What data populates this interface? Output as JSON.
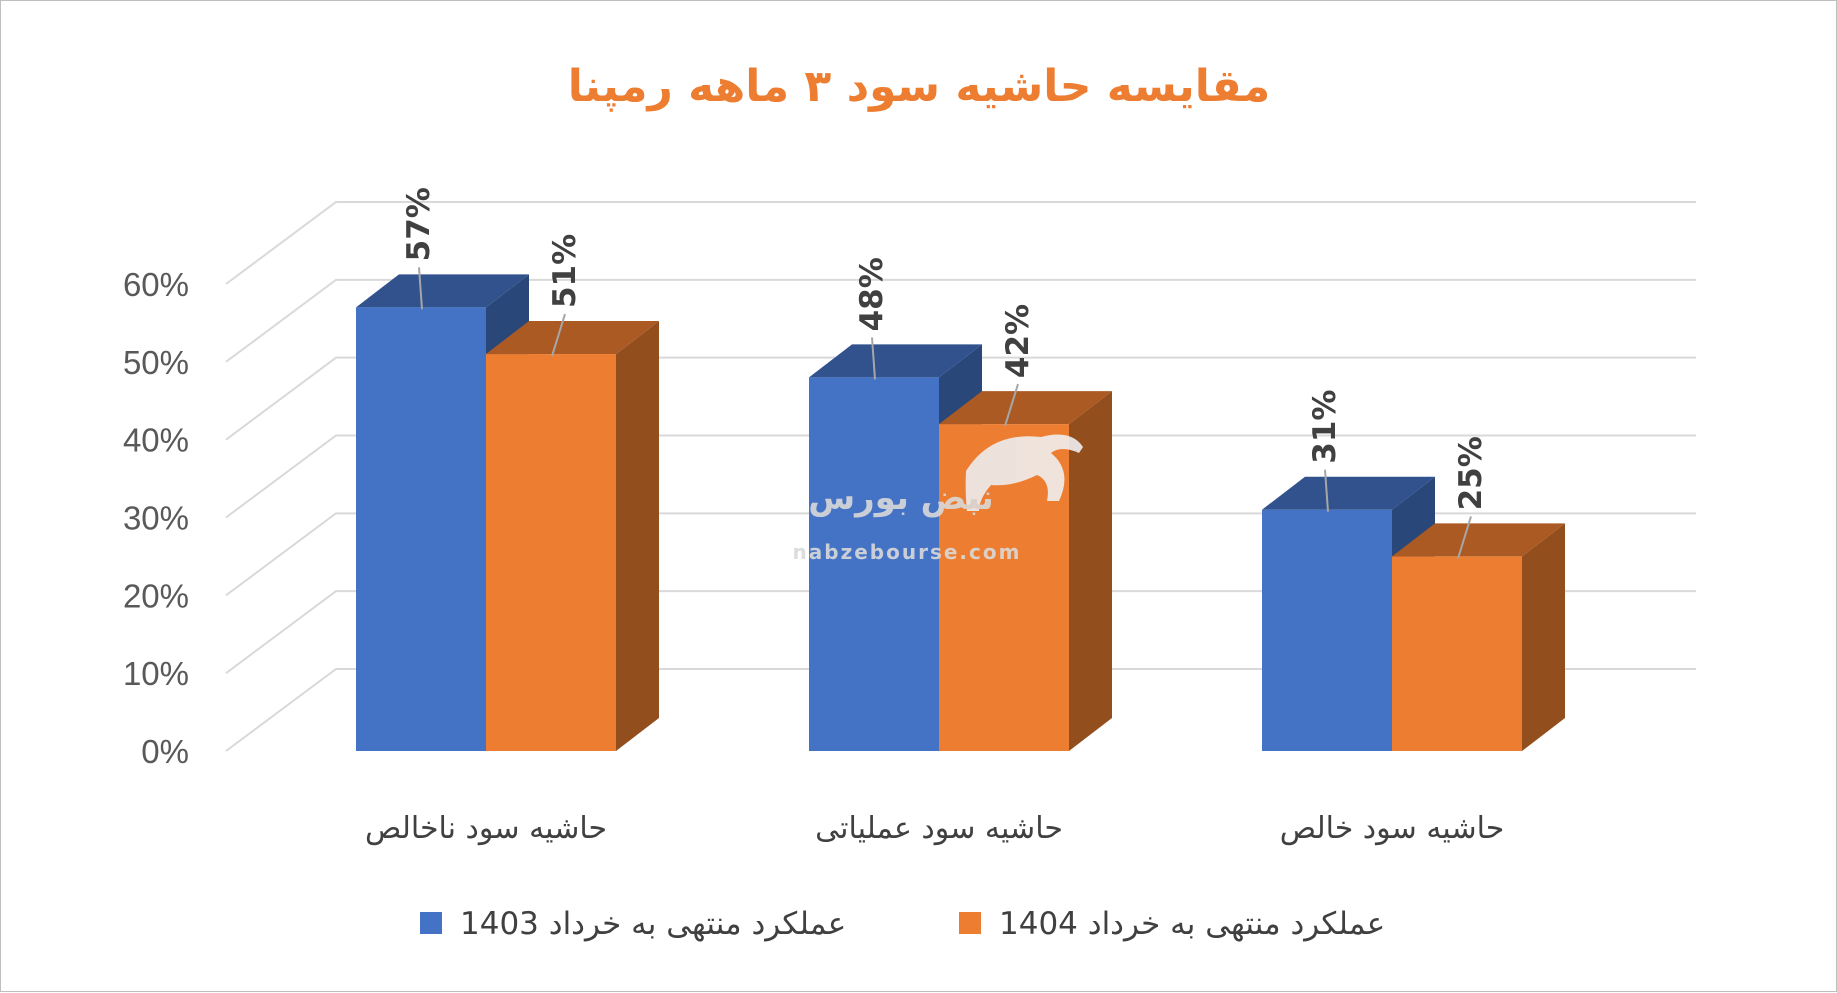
{
  "chart_data": {
    "type": "bar",
    "title": "مقایسه حاشیه سود ۳ ماهه رمپنا",
    "categories": [
      "حاشیه سود ناخالص",
      "حاشیه سود عملیاتی",
      "حاشیه سود خالص"
    ],
    "series": [
      {
        "name": "عملکرد منتهی به خرداد 1403",
        "values": [
          57,
          48,
          31
        ],
        "labels": [
          "57%",
          "48%",
          "31%"
        ],
        "color": "#4472c4"
      },
      {
        "name": "عملکرد منتهی به خرداد 1404",
        "values": [
          51,
          42,
          25
        ],
        "labels": [
          "51%",
          "42%",
          "25%"
        ],
        "color": "#ed7d31"
      }
    ],
    "y_ticks": [
      "0%",
      "10%",
      "20%",
      "30%",
      "40%",
      "50%",
      "60%"
    ],
    "ylim": [
      0,
      60
    ],
    "grid": true,
    "legend": "bottom"
  },
  "watermark": {
    "text": "نبض بورس",
    "url_text": "nabzebourse.com",
    "icon": "bull-icon"
  }
}
